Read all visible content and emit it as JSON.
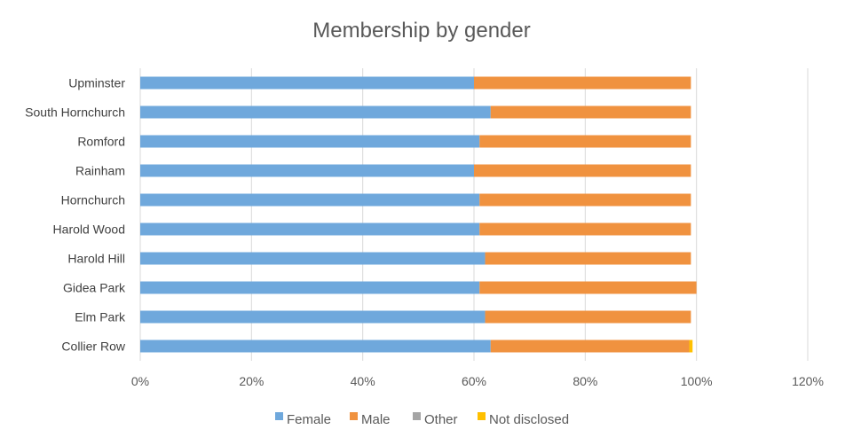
{
  "chart_data": {
    "type": "bar",
    "orientation": "horizontal",
    "stacked": "percent",
    "title": "Membership by gender",
    "categories": [
      "Upminster",
      "South Hornchurch",
      "Romford",
      "Rainham",
      "Hornchurch",
      "Harold Wood",
      "Harold Hill",
      "Gidea Park",
      "Elm Park",
      "Collier Row"
    ],
    "series": [
      {
        "name": "Female",
        "color": "#6fa8dc",
        "values": [
          60,
          63,
          61,
          60,
          61,
          61,
          62,
          61,
          62,
          63
        ]
      },
      {
        "name": "Male",
        "color": "#f0923f",
        "values": [
          39,
          36,
          38,
          39,
          38,
          38,
          37,
          39,
          37,
          35.7
        ]
      },
      {
        "name": "Other",
        "color": "#a5a5a5",
        "values": [
          0,
          0,
          0,
          0,
          0,
          0,
          0,
          0,
          0,
          0
        ]
      },
      {
        "name": "Not disclosed",
        "color": "#ffc000",
        "values": [
          0,
          0,
          0,
          0,
          0,
          0,
          0,
          0,
          0,
          0.6
        ]
      }
    ],
    "xlim": [
      0,
      120
    ],
    "xticks": [
      "0%",
      "20%",
      "40%",
      "60%",
      "80%",
      "100%",
      "120%"
    ],
    "grid": true,
    "legend": "bottom"
  }
}
